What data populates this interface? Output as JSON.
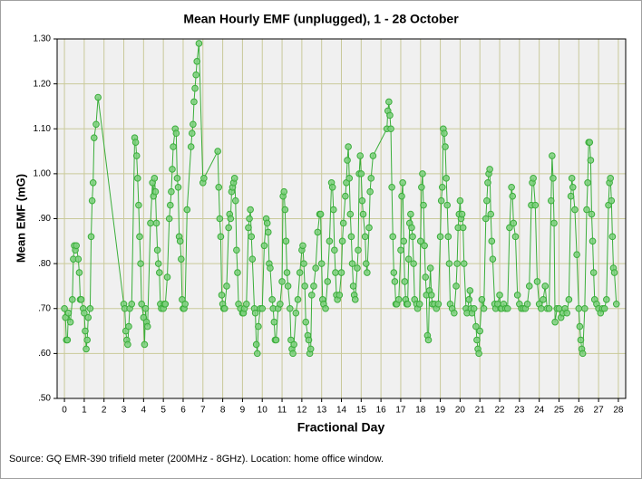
{
  "chart_data": {
    "type": "line",
    "title": "Mean Hourly EMF (unplugged), 1 - 28 October",
    "y_label": "Mean EMF (mG)",
    "x_label": "Fractional Day",
    "source": "Source: GQ EMR-390 trifield meter (200MHz - 8GHz). Location: home office window.",
    "color": "#3aae3a",
    "marker_fill": "#7ccf7c",
    "grid": true,
    "xlim": [
      -0.37,
      28.37
    ],
    "ylim": [
      0.5,
      1.3
    ],
    "xticks": [
      0,
      1,
      2,
      3,
      4,
      5,
      6,
      7,
      8,
      9,
      10,
      11,
      12,
      13,
      14,
      15,
      16,
      17,
      18,
      19,
      20,
      21,
      22,
      23,
      24,
      25,
      26,
      27,
      28
    ],
    "yticks": [
      {
        "value": 0.5,
        "label": ".50"
      },
      {
        "value": 0.6,
        "label": ".60"
      },
      {
        "value": 0.7,
        "label": ".70"
      },
      {
        "value": 0.8,
        "label": ".80"
      },
      {
        "value": 0.9,
        "label": ".90"
      },
      {
        "value": 1.0,
        "label": "1.00"
      },
      {
        "value": 1.1,
        "label": "1.10"
      },
      {
        "value": 1.2,
        "label": "1.20"
      },
      {
        "value": 1.3,
        "label": "1.30"
      }
    ],
    "x": [
      0,
      0.05,
      0.1,
      0.15,
      0.2,
      0.3,
      0.4,
      0.45,
      0.5,
      0.55,
      0.6,
      0.7,
      0.75,
      0.8,
      0.85,
      0.95,
      1,
      1.05,
      1.1,
      1.15,
      1.2,
      1.3,
      1.35,
      1.4,
      1.45,
      1.5,
      1.6,
      1.7,
      3,
      3.05,
      3.1,
      3.15,
      3.2,
      3.25,
      3.3,
      3.4,
      3.55,
      3.6,
      3.65,
      3.7,
      3.75,
      3.8,
      3.85,
      3.9,
      4,
      4.05,
      4.1,
      4.15,
      4.2,
      4.35,
      4.45,
      4.5,
      4.55,
      4.6,
      4.65,
      4.7,
      4.75,
      4.8,
      4.85,
      4.9,
      5,
      5.05,
      5.1,
      5.2,
      5.3,
      5.35,
      5.4,
      5.45,
      5.5,
      5.6,
      5.65,
      5.7,
      5.75,
      5.8,
      5.85,
      5.9,
      5.95,
      6,
      6.05,
      6.1,
      6.2,
      6.4,
      6.45,
      6.5,
      6.55,
      6.6,
      6.65,
      6.7,
      6.8,
      7,
      7.05,
      7.75,
      7.8,
      7.85,
      7.9,
      7.95,
      8,
      8.05,
      8.1,
      8.2,
      8.3,
      8.35,
      8.4,
      8.45,
      8.5,
      8.55,
      8.6,
      8.65,
      8.7,
      8.75,
      8.8,
      8.9,
      9,
      9.05,
      9.1,
      9.2,
      9.3,
      9.35,
      9.4,
      9.45,
      9.5,
      9.6,
      9.65,
      9.7,
      9.75,
      9.8,
      9.9,
      10,
      10.1,
      10.2,
      10.25,
      10.3,
      10.35,
      10.4,
      10.5,
      10.55,
      10.6,
      10.65,
      10.7,
      10.8,
      10.9,
      11,
      11.05,
      11.1,
      11.15,
      11.2,
      11.25,
      11.3,
      11.4,
      11.45,
      11.5,
      11.55,
      11.6,
      11.7,
      11.8,
      11.9,
      12,
      12.05,
      12.1,
      12.15,
      12.2,
      12.3,
      12.35,
      12.4,
      12.45,
      12.5,
      12.6,
      12.7,
      12.8,
      12.9,
      12.95,
      13,
      13.05,
      13.1,
      13.2,
      13.3,
      13.4,
      13.5,
      13.55,
      13.6,
      13.65,
      13.7,
      13.75,
      13.8,
      13.9,
      14,
      14.05,
      14.1,
      14.2,
      14.25,
      14.3,
      14.35,
      14.4,
      14.45,
      14.5,
      14.55,
      14.6,
      14.65,
      14.7,
      14.8,
      14.85,
      14.9,
      14.95,
      15,
      15.05,
      15.1,
      15.2,
      15.25,
      15.3,
      15.4,
      15.45,
      15.5,
      15.6,
      16.3,
      16.35,
      16.4,
      16.45,
      16.5,
      16.55,
      16.6,
      16.65,
      16.7,
      16.75,
      16.8,
      16.9,
      17,
      17.05,
      17.1,
      17.15,
      17.2,
      17.25,
      17.3,
      17.35,
      17.4,
      17.45,
      17.5,
      17.55,
      17.6,
      17.65,
      17.7,
      17.8,
      17.85,
      17.95,
      18,
      18.05,
      18.1,
      18.15,
      18.2,
      18.25,
      18.3,
      18.35,
      18.4,
      18.45,
      18.5,
      18.55,
      18.6,
      18.7,
      18.8,
      18.9,
      19,
      19.05,
      19.1,
      19.15,
      19.2,
      19.25,
      19.3,
      19.35,
      19.4,
      19.45,
      19.5,
      19.6,
      19.7,
      19.8,
      19.85,
      19.9,
      19.95,
      20,
      20.05,
      20.1,
      20.15,
      20.2,
      20.3,
      20.35,
      20.45,
      20.5,
      20.55,
      20.6,
      20.7,
      20.8,
      20.85,
      20.9,
      20.95,
      21,
      21.1,
      21.2,
      21.3,
      21.35,
      21.4,
      21.45,
      21.5,
      21.55,
      21.6,
      21.65,
      21.75,
      21.8,
      21.9,
      22,
      22.05,
      22.1,
      22.2,
      22.3,
      22.4,
      22.5,
      22.6,
      22.65,
      22.7,
      22.8,
      22.9,
      23,
      23.1,
      23.2,
      23.3,
      23.4,
      23.5,
      23.6,
      23.65,
      23.7,
      23.8,
      23.9,
      24,
      24.1,
      24.2,
      24.3,
      24.4,
      24.5,
      24.6,
      24.65,
      24.7,
      24.75,
      24.8,
      24.9,
      25,
      25.1,
      25.2,
      25.3,
      25.4,
      25.5,
      25.6,
      25.65,
      25.7,
      25.8,
      25.9,
      26,
      26.05,
      26.1,
      26.15,
      26.2,
      26.3,
      26.4,
      26.45,
      26.5,
      26.55,
      26.6,
      26.65,
      26.7,
      26.75,
      26.8,
      26.9,
      27,
      27.1,
      27.2,
      27.3,
      27.4,
      27.5,
      27.55,
      27.6,
      27.65,
      27.7,
      27.75,
      27.8,
      27.9
    ],
    "values": [
      0.7,
      0.68,
      0.63,
      0.63,
      0.69,
      0.67,
      0.72,
      0.81,
      0.84,
      0.83,
      0.84,
      0.81,
      0.78,
      0.72,
      0.72,
      0.7,
      0.69,
      0.65,
      0.61,
      0.63,
      0.68,
      0.7,
      0.86,
      0.94,
      0.98,
      1.08,
      1.11,
      1.17,
      0.71,
      0.7,
      0.65,
      0.63,
      0.62,
      0.66,
      0.7,
      0.71,
      1.08,
      1.07,
      1.04,
      0.99,
      0.93,
      0.86,
      0.8,
      0.71,
      0.68,
      0.62,
      0.7,
      0.67,
      0.66,
      0.89,
      0.98,
      0.95,
      0.99,
      0.96,
      0.89,
      0.83,
      0.8,
      0.78,
      0.71,
      0.7,
      0.7,
      0.71,
      0.71,
      0.77,
      0.9,
      0.93,
      0.96,
      1.01,
      1.06,
      1.1,
      1.09,
      0.99,
      0.97,
      0.86,
      0.85,
      0.81,
      0.72,
      0.7,
      0.7,
      0.71,
      0.92,
      1.06,
      1.09,
      1.11,
      1.16,
      1.19,
      1.22,
      1.25,
      1.29,
      0.98,
      0.99,
      1.05,
      0.97,
      0.9,
      0.86,
      0.73,
      0.71,
      0.7,
      0.7,
      0.75,
      0.88,
      0.91,
      0.9,
      0.96,
      0.97,
      0.98,
      0.99,
      0.94,
      0.83,
      0.78,
      0.71,
      0.7,
      0.69,
      0.69,
      0.7,
      0.71,
      0.88,
      0.9,
      0.92,
      0.86,
      0.81,
      0.7,
      0.69,
      0.62,
      0.6,
      0.66,
      0.7,
      0.7,
      0.84,
      0.9,
      0.89,
      0.87,
      0.8,
      0.79,
      0.72,
      0.7,
      0.67,
      0.63,
      0.63,
      0.7,
      0.71,
      0.76,
      0.95,
      0.96,
      0.92,
      0.85,
      0.78,
      0.75,
      0.7,
      0.63,
      0.61,
      0.6,
      0.62,
      0.69,
      0.72,
      0.78,
      0.83,
      0.84,
      0.8,
      0.75,
      0.67,
      0.64,
      0.63,
      0.6,
      0.61,
      0.73,
      0.75,
      0.79,
      0.87,
      0.91,
      0.91,
      0.8,
      0.72,
      0.71,
      0.7,
      0.76,
      0.85,
      0.98,
      0.97,
      0.92,
      0.83,
      0.78,
      0.73,
      0.72,
      0.73,
      0.78,
      0.85,
      0.89,
      0.95,
      0.98,
      1.03,
      1.06,
      0.99,
      0.91,
      0.86,
      0.8,
      0.75,
      0.73,
      0.72,
      0.79,
      0.83,
      1.0,
      1.04,
      1.0,
      0.94,
      0.91,
      0.86,
      0.8,
      0.78,
      0.88,
      0.96,
      0.99,
      1.04,
      1.1,
      1.14,
      1.16,
      1.13,
      1.1,
      0.97,
      0.86,
      0.78,
      0.76,
      0.71,
      0.71,
      0.72,
      0.83,
      0.95,
      0.98,
      0.85,
      0.76,
      0.72,
      0.71,
      0.71,
      0.81,
      0.89,
      0.91,
      0.88,
      0.86,
      0.8,
      0.72,
      0.71,
      0.7,
      0.71,
      0.85,
      0.97,
      1.0,
      0.93,
      0.84,
      0.77,
      0.73,
      0.64,
      0.63,
      0.74,
      0.79,
      0.73,
      0.71,
      0.71,
      0.7,
      0.71,
      0.86,
      0.94,
      0.97,
      1.1,
      1.09,
      1.06,
      0.99,
      0.93,
      0.86,
      0.8,
      0.71,
      0.7,
      0.69,
      0.75,
      0.8,
      0.88,
      0.91,
      0.94,
      0.9,
      0.91,
      0.88,
      0.8,
      0.7,
      0.69,
      0.72,
      0.74,
      0.7,
      0.69,
      0.7,
      0.66,
      0.63,
      0.61,
      0.6,
      0.65,
      0.72,
      0.7,
      0.9,
      0.94,
      0.98,
      1.0,
      1.01,
      0.91,
      0.85,
      0.81,
      0.71,
      0.7,
      0.71,
      0.73,
      0.7,
      0.7,
      0.71,
      0.7,
      0.7,
      0.88,
      0.97,
      0.95,
      0.89,
      0.86,
      0.73,
      0.71,
      0.7,
      0.7,
      0.7,
      0.71,
      0.75,
      0.93,
      0.98,
      0.99,
      0.93,
      0.76,
      0.71,
      0.7,
      0.72,
      0.75,
      0.7,
      0.7,
      0.94,
      1.04,
      0.99,
      0.89,
      0.67,
      0.7,
      0.7,
      0.68,
      0.69,
      0.7,
      0.69,
      0.72,
      0.95,
      0.99,
      0.97,
      0.92,
      0.82,
      0.7,
      0.66,
      0.63,
      0.61,
      0.6,
      0.7,
      0.92,
      0.98,
      1.07,
      1.07,
      1.03,
      0.91,
      0.85,
      0.78,
      0.72,
      0.71,
      0.7,
      0.69,
      0.7,
      0.7,
      0.72,
      0.93,
      0.98,
      0.99,
      0.94,
      0.86,
      0.79,
      0.78,
      0.71
    ]
  }
}
